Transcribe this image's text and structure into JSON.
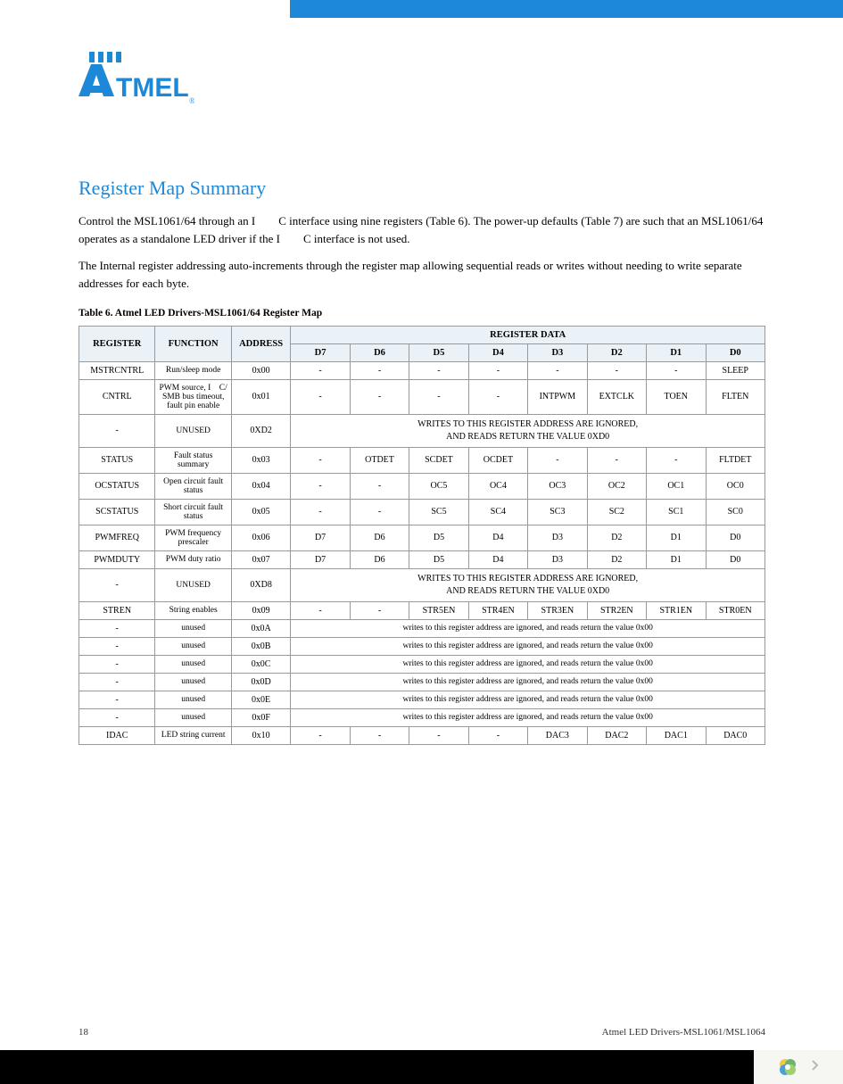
{
  "banner_color": "#1e88d8",
  "logo": {
    "text": "ATMEL",
    "color": "#1e88d8",
    "reg_mark": "®"
  },
  "heading": "Register Map Summary",
  "para1": "Control the MSL1061/64 through an I    C interface using nine registers (Table 6). The power-up defaults (Table 7) are such that an MSL1061/64 operates as a standalone LED driver if the I    C interface is not used.",
  "para2": "The Internal register addressing auto-increments through the register map allowing sequential reads or writes without needing to write separate addresses for each byte.",
  "table_caption": "Table 6. Atmel LED Drivers-MSL1061/64 Register Map",
  "headers": {
    "register": "REGISTER",
    "function": "FUNCTION",
    "address": "ADDRESS",
    "register_data": "REGISTER DATA",
    "bits": [
      "D7",
      "D6",
      "D5",
      "D4",
      "D3",
      "D2",
      "D1",
      "D0"
    ]
  },
  "rows": [
    {
      "reg": "MSTRCNTRL",
      "func": "Run/sleep mode",
      "addr": "0x00",
      "cells": [
        "-",
        "-",
        "-",
        "-",
        "-",
        "-",
        "-",
        "SLEEP"
      ]
    },
    {
      "reg": "CNTRL",
      "func": "PWM source, I  C/ SMB bus timeout, fault pin enable",
      "addr": "0x01",
      "cells": [
        "-",
        "-",
        "-",
        "-",
        "INTPWM",
        "EXTCLK",
        "TOEN",
        "FLTEN"
      ]
    },
    {
      "reg": "-",
      "func": "UNUSED",
      "addr": "0XD2",
      "merged": "WRITES TO THIS REGISTER ADDRESS ARE IGNORED,\nAND READS RETURN THE VALUE 0XD0"
    },
    {
      "reg": "STATUS",
      "func": "Fault status summary",
      "addr": "0x03",
      "cells": [
        "-",
        "OTDET",
        "SCDET",
        "OCDET",
        "-",
        "-",
        "-",
        "FLTDET"
      ]
    },
    {
      "reg": "OCSTATUS",
      "func": "Open circuit fault status",
      "addr": "0x04",
      "cells": [
        "-",
        "-",
        "OC5",
        "OC4",
        "OC3",
        "OC2",
        "OC1",
        "OC0"
      ]
    },
    {
      "reg": "SCSTATUS",
      "func": "Short circuit fault status",
      "addr": "0x05",
      "cells": [
        "-",
        "-",
        "SC5",
        "SC4",
        "SC3",
        "SC2",
        "SC1",
        "SC0"
      ]
    },
    {
      "reg": "PWMFREQ",
      "func": "PWM frequency prescaler",
      "addr": "0x06",
      "cells": [
        "D7",
        "D6",
        "D5",
        "D4",
        "D3",
        "D2",
        "D1",
        "D0"
      ]
    },
    {
      "reg": "PWMDUTY",
      "func": "PWM duty ratio",
      "addr": "0x07",
      "cells": [
        "D7",
        "D6",
        "D5",
        "D4",
        "D3",
        "D2",
        "D1",
        "D0"
      ]
    },
    {
      "reg": "-",
      "func": "UNUSED",
      "addr": "0XD8",
      "merged": "WRITES TO THIS REGISTER ADDRESS ARE IGNORED,\nAND READS RETURN THE VALUE 0XD0"
    },
    {
      "reg": "STREN",
      "func": "String enables",
      "addr": "0x09",
      "cells": [
        "-",
        "-",
        "STR5EN",
        "STR4EN",
        "STR3EN",
        "STR2EN",
        "STR1EN",
        "STR0EN"
      ]
    },
    {
      "reg": "-",
      "func": "unused",
      "addr": "0x0A",
      "merged_small": "writes to this register address are ignored, and reads return the value 0x00"
    },
    {
      "reg": "-",
      "func": "unused",
      "addr": "0x0B",
      "merged_small": "writes to this register address are ignored, and reads return the value 0x00"
    },
    {
      "reg": "-",
      "func": "unused",
      "addr": "0x0C",
      "merged_small": "writes to this register address are ignored, and reads return the value 0x00"
    },
    {
      "reg": "-",
      "func": "unused",
      "addr": "0x0D",
      "merged_small": "writes to this register address are ignored, and reads return the value 0x00"
    },
    {
      "reg": "-",
      "func": "unused",
      "addr": "0x0E",
      "merged_small": "writes to this register address are ignored, and reads return the value 0x00"
    },
    {
      "reg": "-",
      "func": "unused",
      "addr": "0x0F",
      "merged_small": "writes to this register address are ignored, and reads return the value 0x00"
    },
    {
      "reg": "IDAC",
      "func": "LED string current",
      "addr": "0x10",
      "cells": [
        "-",
        "-",
        "-",
        "-",
        "DAC3",
        "DAC2",
        "DAC1",
        "DAC0"
      ]
    }
  ],
  "footer": {
    "page_num": "18",
    "doc_title": "Atmel LED Drivers-MSL1061/MSL1064"
  }
}
